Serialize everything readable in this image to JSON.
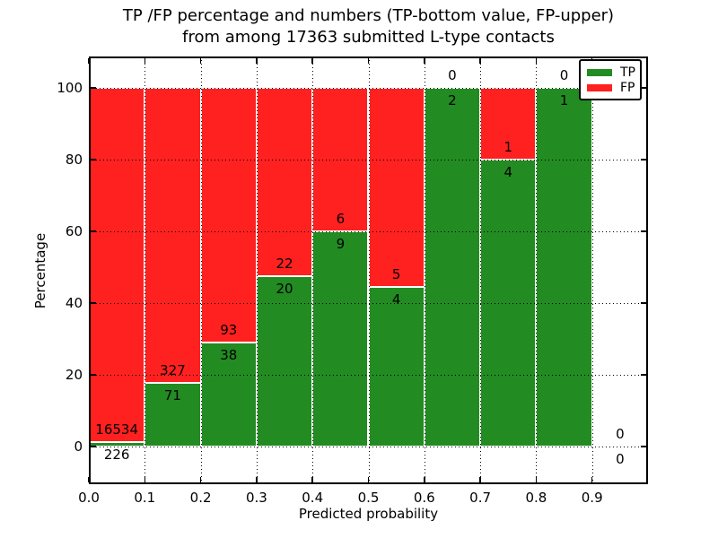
{
  "title": {
    "line1": "TP /FP percentage and numbers (TP-bottom value, FP-upper)",
    "line2": "from among 17363 submitted L-type contacts"
  },
  "x_axis": {
    "label": "Predicted probability",
    "ticks": [
      "0.0",
      "0.1",
      "0.2",
      "0.3",
      "0.4",
      "0.5",
      "0.6",
      "0.7",
      "0.8",
      "0.9"
    ]
  },
  "y_axis": {
    "label": "Percentage",
    "ticks": [
      "0",
      "20",
      "40",
      "60",
      "80",
      "100"
    ]
  },
  "legend": {
    "items": [
      {
        "label": "TP",
        "color": "#228B22"
      },
      {
        "label": "FP",
        "color": "#FF2020"
      }
    ]
  },
  "chart_data": {
    "type": "bar",
    "stacked": true,
    "normalized_to_percent": 100,
    "total_contacts": 17363,
    "title": "TP /FP percentage and numbers (TP-bottom value, FP-upper) from among 17363 submitted L-type contacts",
    "xlabel": "Predicted probability",
    "ylabel": "Percentage",
    "bin_edges": [
      0.0,
      0.1,
      0.2,
      0.3,
      0.4,
      0.5,
      0.6,
      0.7,
      0.8,
      0.9,
      1.0
    ],
    "categories": [
      "0.0-0.1",
      "0.1-0.2",
      "0.2-0.3",
      "0.3-0.4",
      "0.4-0.5",
      "0.5-0.6",
      "0.6-0.7",
      "0.7-0.8",
      "0.8-0.9",
      "0.9-1.0"
    ],
    "series": [
      {
        "name": "TP",
        "color": "#228B22",
        "counts": [
          226,
          71,
          38,
          20,
          9,
          4,
          2,
          4,
          1,
          0
        ]
      },
      {
        "name": "FP",
        "color": "#FF2020",
        "counts": [
          16534,
          327,
          93,
          22,
          6,
          5,
          0,
          1,
          0,
          0
        ]
      }
    ],
    "tp_percentages": [
      1.35,
      17.84,
      29.01,
      47.62,
      60.0,
      44.44,
      100.0,
      80.0,
      100.0,
      null
    ],
    "xlim": [
      0.0,
      1.0
    ],
    "ylim": [
      -10.5,
      108.75
    ],
    "grid": true,
    "grid_style": "dotted",
    "bar_edge_color": "#ffffff",
    "legend_position": "upper right"
  }
}
